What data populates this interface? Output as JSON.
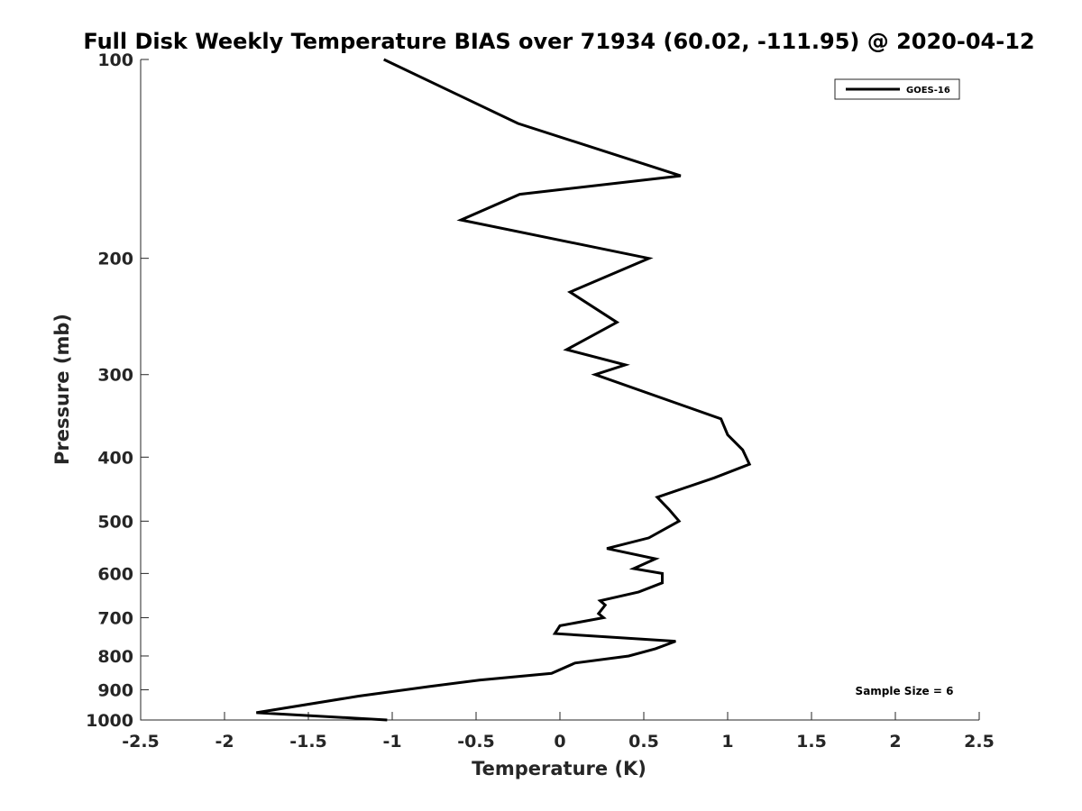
{
  "chart_data": {
    "type": "line",
    "title": "Full Disk Weekly Temperature BIAS over 71934 (60.02, -111.95) @ 2020-04-12",
    "xlabel": "Temperature (K)",
    "ylabel": "Pressure (mb)",
    "xlim": [
      -2.5,
      2.5
    ],
    "ylim": [
      100,
      1000
    ],
    "y_scale": "log",
    "y_reversed": true,
    "grid": false,
    "legend_position": "top-right",
    "x_ticks": [
      "-2.5",
      "-2",
      "-1.5",
      "-1",
      "-0.5",
      "0",
      "0.5",
      "1",
      "1.5",
      "2",
      "2.5"
    ],
    "y_ticks": [
      "100",
      "200",
      "300",
      "400",
      "500",
      "600",
      "700",
      "800",
      "900",
      "1000"
    ],
    "series": [
      {
        "name": "GOES-16",
        "color": "#000000",
        "points": [
          {
            "t": -1.05,
            "p": 100
          },
          {
            "t": -0.25,
            "p": 125
          },
          {
            "t": 0.72,
            "p": 150
          },
          {
            "t": -0.24,
            "p": 160
          },
          {
            "t": -0.59,
            "p": 175
          },
          {
            "t": 0.53,
            "p": 200
          },
          {
            "t": 0.06,
            "p": 225
          },
          {
            "t": 0.34,
            "p": 250
          },
          {
            "t": 0.04,
            "p": 275
          },
          {
            "t": 0.39,
            "p": 290
          },
          {
            "t": 0.21,
            "p": 300
          },
          {
            "t": 0.96,
            "p": 350
          },
          {
            "t": 1.0,
            "p": 370
          },
          {
            "t": 1.09,
            "p": 390
          },
          {
            "t": 1.13,
            "p": 410
          },
          {
            "t": 0.92,
            "p": 430
          },
          {
            "t": 0.58,
            "p": 460
          },
          {
            "t": 0.65,
            "p": 480
          },
          {
            "t": 0.71,
            "p": 500
          },
          {
            "t": 0.53,
            "p": 530
          },
          {
            "t": 0.28,
            "p": 550
          },
          {
            "t": 0.57,
            "p": 570
          },
          {
            "t": 0.44,
            "p": 590
          },
          {
            "t": 0.61,
            "p": 600
          },
          {
            "t": 0.61,
            "p": 620
          },
          {
            "t": 0.47,
            "p": 640
          },
          {
            "t": 0.24,
            "p": 660
          },
          {
            "t": 0.27,
            "p": 670
          },
          {
            "t": 0.23,
            "p": 690
          },
          {
            "t": 0.26,
            "p": 700
          },
          {
            "t": 0.0,
            "p": 720
          },
          {
            "t": -0.03,
            "p": 740
          },
          {
            "t": 0.69,
            "p": 760
          },
          {
            "t": 0.57,
            "p": 780
          },
          {
            "t": 0.41,
            "p": 800
          },
          {
            "t": 0.09,
            "p": 820
          },
          {
            "t": -0.05,
            "p": 850
          },
          {
            "t": -0.48,
            "p": 870
          },
          {
            "t": -0.78,
            "p": 890
          },
          {
            "t": -1.2,
            "p": 920
          },
          {
            "t": -1.81,
            "p": 975
          },
          {
            "t": -1.03,
            "p": 1000
          }
        ]
      }
    ],
    "annotations": [
      "Sample Size = 6"
    ]
  }
}
